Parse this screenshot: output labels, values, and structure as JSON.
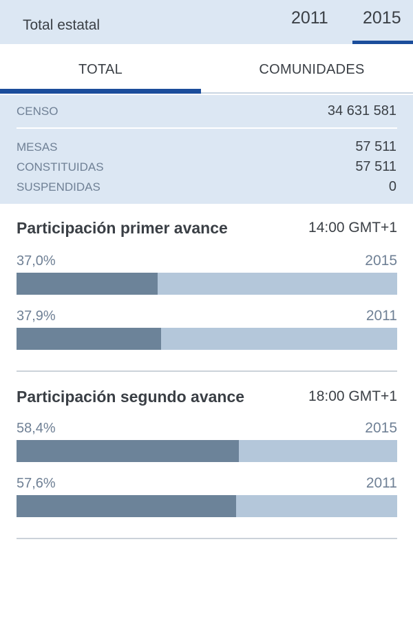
{
  "header": {
    "title": "Total estatal",
    "year_tabs": [
      {
        "label": "2011",
        "selected": false
      },
      {
        "label": "2015",
        "selected": true
      }
    ]
  },
  "tabs": [
    {
      "label": "TOTAL",
      "selected": true
    },
    {
      "label": "COMUNIDADES",
      "selected": false
    }
  ],
  "stats": {
    "censo": {
      "label": "CENSO",
      "value": "34 631 581"
    },
    "mesas": {
      "label": "MESAS",
      "value": "57 511"
    },
    "constituidas": {
      "label": "CONSTITUIDAS",
      "value": "57 511"
    },
    "suspendidas": {
      "label": "SUSPENDIDAS",
      "value": "0"
    }
  },
  "sections": [
    {
      "title": "Participación primer avance",
      "time": "14:00 GMT+1",
      "bars": [
        {
          "label": "37,0%",
          "year": "2015",
          "value": 37.0
        },
        {
          "label": "37,9%",
          "year": "2011",
          "value": 37.9
        }
      ]
    },
    {
      "title": "Participación segundo avance",
      "time": "18:00 GMT+1",
      "bars": [
        {
          "label": "58,4%",
          "year": "2015",
          "value": 58.4
        },
        {
          "label": "57,6%",
          "year": "2011",
          "value": 57.6
        }
      ]
    }
  ],
  "colors": {
    "accent": "#1b4d9b",
    "header_bg": "#dce7f3",
    "bar_fill": "#6c8399",
    "bar_track": "#b4c7da"
  },
  "chart_data": [
    {
      "type": "bar",
      "title": "Participación primer avance",
      "subtitle": "14:00 GMT+1",
      "categories": [
        "2015",
        "2011"
      ],
      "values": [
        37.0,
        37.9
      ],
      "ylim": [
        0,
        100
      ],
      "ylabel": "%"
    },
    {
      "type": "bar",
      "title": "Participación segundo avance",
      "subtitle": "18:00 GMT+1",
      "categories": [
        "2015",
        "2011"
      ],
      "values": [
        58.4,
        57.6
      ],
      "ylim": [
        0,
        100
      ],
      "ylabel": "%"
    }
  ]
}
